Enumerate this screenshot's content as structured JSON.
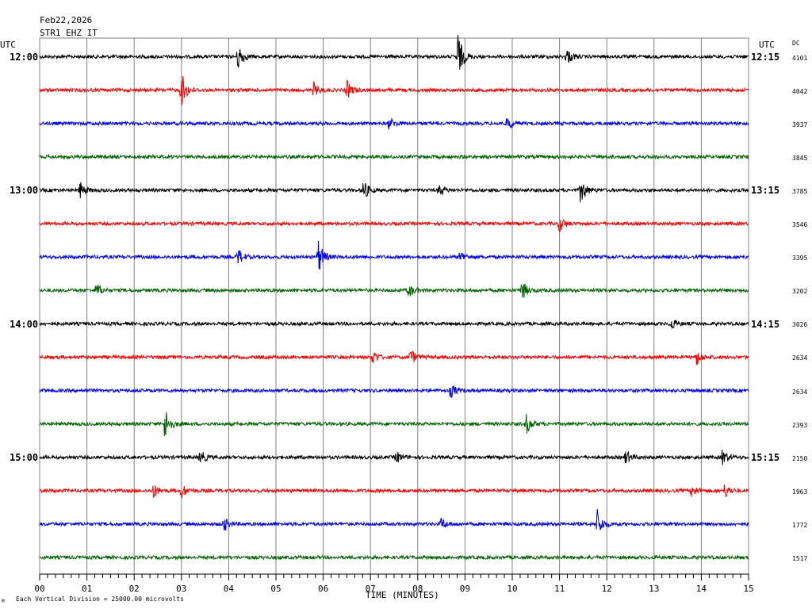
{
  "header": {
    "date": "Feb22,2026",
    "station": "STR1 EHZ IT",
    "utc_left": "UTC",
    "utc_right": "UTC",
    "dc_label": "DC"
  },
  "footer": {
    "scale_note": "Each Vertical Division = 25000.00 microvolts",
    "mark": "M"
  },
  "chart_data": {
    "type": "line",
    "title": "",
    "xlabel": "TIME (MINUTES)",
    "ylabel": "",
    "xlim": [
      0,
      15
    ],
    "grid": true,
    "x_ticks": [
      "00",
      "01",
      "02",
      "03",
      "04",
      "05",
      "06",
      "07",
      "08",
      "09",
      "10",
      "11",
      "12",
      "13",
      "14",
      "15"
    ],
    "left_time_labels": [
      "12:00",
      "13:00",
      "14:00",
      "15:00"
    ],
    "right_time_labels": [
      "12:15",
      "13:15",
      "14:15",
      "15:15"
    ],
    "trace_colors": [
      "#000000",
      "#ff0000",
      "#0000ff",
      "#006400"
    ],
    "traces": [
      {
        "dc": "4101",
        "events": [
          [
            4.2,
            0.6
          ],
          [
            8.85,
            1.0
          ],
          [
            11.15,
            0.35
          ]
        ]
      },
      {
        "dc": "4042",
        "events": [
          [
            3.0,
            0.75
          ],
          [
            5.8,
            0.3
          ],
          [
            6.5,
            0.4
          ]
        ]
      },
      {
        "dc": "3937",
        "events": [
          [
            7.4,
            0.25
          ],
          [
            9.9,
            0.3
          ]
        ]
      },
      {
        "dc": "3845",
        "events": []
      },
      {
        "dc": "3785",
        "events": [
          [
            0.85,
            0.35
          ],
          [
            6.85,
            0.45
          ],
          [
            8.45,
            0.25
          ],
          [
            11.45,
            0.6
          ]
        ]
      },
      {
        "dc": "3546",
        "events": [
          [
            11.0,
            0.35
          ]
        ]
      },
      {
        "dc": "3395",
        "events": [
          [
            4.2,
            0.35
          ],
          [
            5.9,
            0.7
          ],
          [
            8.9,
            0.25
          ]
        ]
      },
      {
        "dc": "3202",
        "events": [
          [
            1.2,
            0.3
          ],
          [
            7.8,
            0.3
          ],
          [
            10.2,
            0.45
          ]
        ]
      },
      {
        "dc": "3026",
        "events": [
          [
            13.35,
            0.3
          ]
        ]
      },
      {
        "dc": "2634",
        "events": [
          [
            7.05,
            0.3
          ],
          [
            7.85,
            0.35
          ],
          [
            13.9,
            0.3
          ]
        ]
      },
      {
        "dc": "2634",
        "events": [
          [
            8.7,
            0.3
          ]
        ]
      },
      {
        "dc": "2393",
        "events": [
          [
            2.65,
            0.75
          ],
          [
            10.3,
            0.4
          ]
        ]
      },
      {
        "dc": "2150",
        "events": [
          [
            3.4,
            0.3
          ],
          [
            7.55,
            0.25
          ],
          [
            12.4,
            0.3
          ],
          [
            14.45,
            0.35
          ]
        ]
      },
      {
        "dc": "1963",
        "events": [
          [
            2.4,
            0.3
          ],
          [
            3.0,
            0.3
          ],
          [
            13.8,
            0.25
          ],
          [
            14.5,
            0.3
          ]
        ]
      },
      {
        "dc": "1772",
        "events": [
          [
            3.9,
            0.3
          ],
          [
            8.5,
            0.25
          ],
          [
            11.8,
            0.6
          ]
        ]
      },
      {
        "dc": "1517",
        "events": []
      }
    ]
  }
}
